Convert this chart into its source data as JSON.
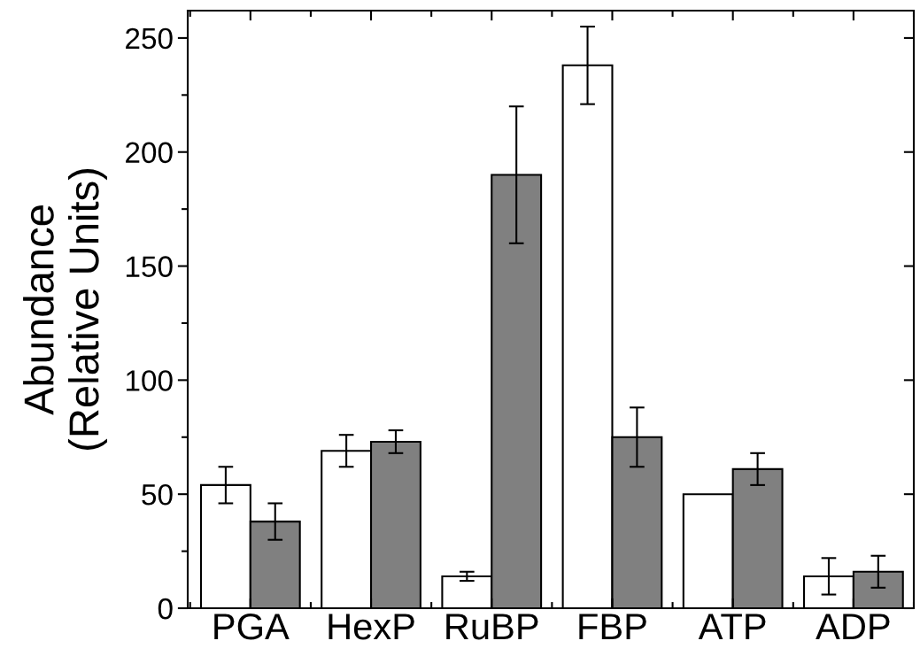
{
  "chart_data": {
    "type": "bar",
    "ylabel": "Abundance\n(Relative Units)",
    "categories": [
      "PGA",
      "HexP",
      "RuBP",
      "FBP",
      "ATP",
      "ADP"
    ],
    "series": [
      {
        "color": "#ffffff",
        "values": [
          54,
          69,
          14,
          238,
          50,
          14
        ],
        "errors": [
          8,
          7,
          2,
          17,
          null,
          8
        ]
      },
      {
        "color": "#808080",
        "values": [
          38,
          73,
          190,
          75,
          61,
          16
        ],
        "errors": [
          8,
          5,
          30,
          13,
          7,
          7
        ]
      }
    ],
    "ylim": [
      0,
      262
    ],
    "yticks": [
      0,
      {
        "value": 25,
        "label": null
      },
      50,
      {
        "value": 75,
        "label": null
      },
      100,
      {
        "value": 125,
        "label": null
      },
      150,
      {
        "value": 175,
        "label": null
      },
      200,
      {
        "value": 225,
        "label": null
      },
      250
    ],
    "grid": false,
    "legend": false
  }
}
